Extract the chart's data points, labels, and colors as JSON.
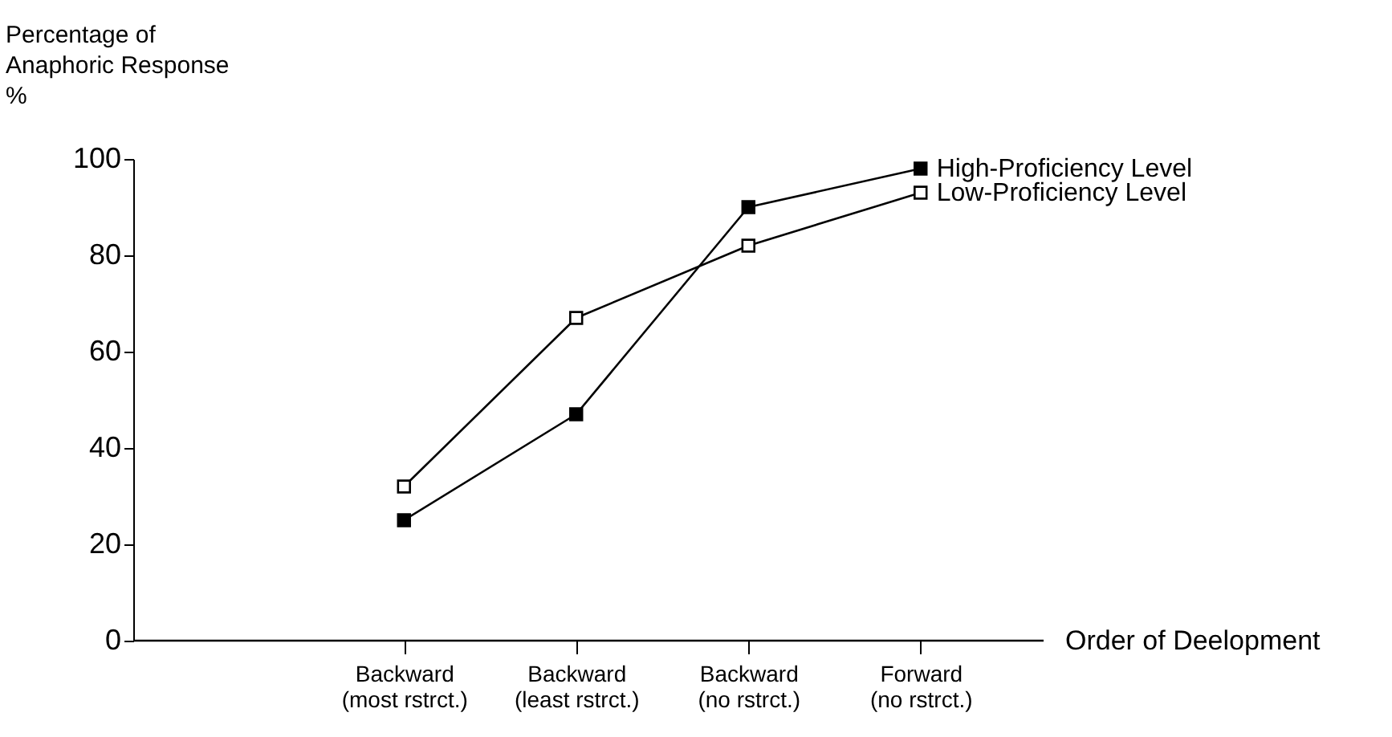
{
  "chart_data": {
    "type": "line",
    "ylabel": "Percentage of\nAnaphoric Response\n%",
    "xlabel": "Order of Deelopment",
    "categories": [
      "Backward\n(most rstrct.)",
      "Backward\n(least rstrct.)",
      "Backward\n(no rstrct.)",
      "Forward\n(no rstrct.)"
    ],
    "series": [
      {
        "name": "High-Proficiency Level",
        "color": "#000000",
        "values": [
          25,
          47,
          90,
          98
        ]
      },
      {
        "name": "Low-Proficiency Level",
        "color": "#000000",
        "values": [
          32,
          67,
          82,
          93
        ]
      }
    ],
    "ylim": [
      0,
      100
    ],
    "yticks": [
      0,
      20,
      40,
      60,
      80,
      100
    ],
    "marker": "square",
    "grid": false,
    "legend": false
  }
}
